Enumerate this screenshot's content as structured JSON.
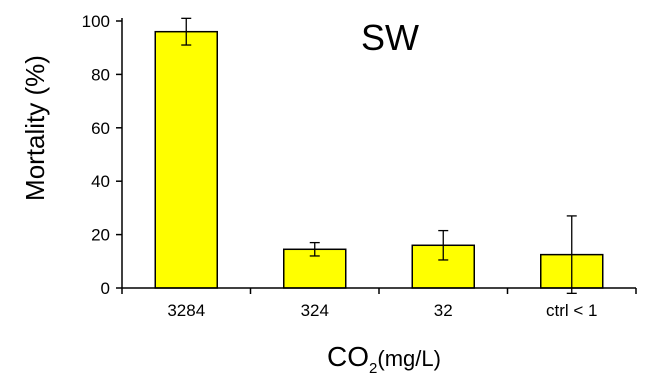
{
  "chart_data": {
    "type": "bar",
    "title": "SW",
    "ylabel": "Mortality (%)",
    "xlabel": {
      "main": "CO",
      "subscript": "2",
      "unit": "(mg/L)"
    },
    "categories": [
      "3284",
      "324",
      "32",
      "ctrl < 1"
    ],
    "values": [
      96,
      14.5,
      16,
      12.5
    ],
    "error": [
      5,
      2.5,
      5.5,
      14.5
    ],
    "ylim": [
      0,
      100
    ],
    "yticks": [
      0,
      20,
      40,
      60,
      80,
      100
    ],
    "grid": false,
    "colors": {
      "bar": "#ffff00",
      "edge": "#000000"
    }
  }
}
